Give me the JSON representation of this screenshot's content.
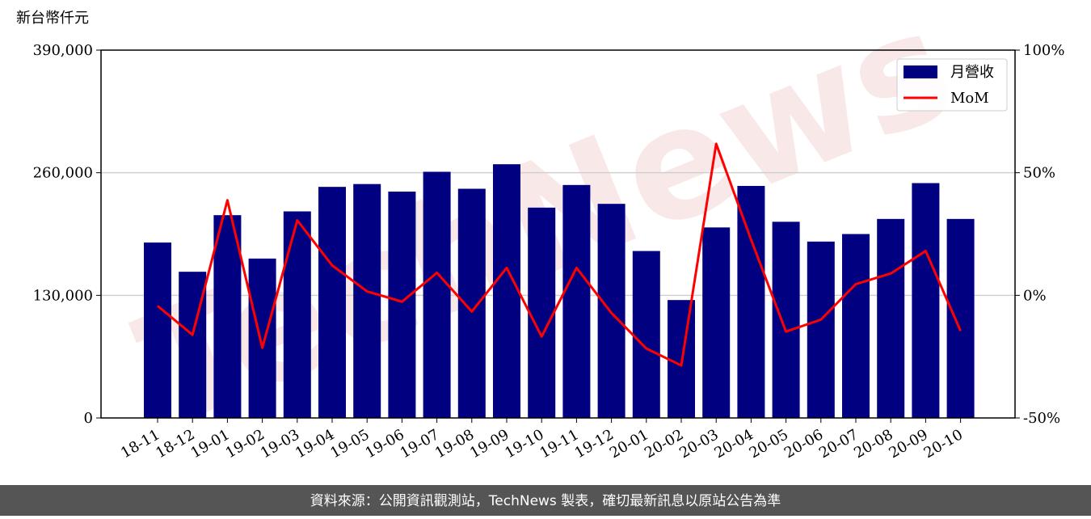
{
  "chart_data": {
    "type": "bar",
    "y_label": "新台幣仟元",
    "watermark": "TechNews",
    "categories": [
      "18-11",
      "18-12",
      "19-01",
      "19-02",
      "19-03",
      "19-04",
      "19-05",
      "19-06",
      "19-07",
      "19-08",
      "19-09",
      "19-10",
      "19-11",
      "19-12",
      "20-01",
      "20-02",
      "20-03",
      "20-04",
      "20-05",
      "20-06",
      "20-07",
      "20-08",
      "20-09",
      "20-10"
    ],
    "series": [
      {
        "name": "月營收",
        "type": "bar",
        "color": "#000080",
        "values": [
          186000,
          155000,
          215000,
          169000,
          219000,
          245000,
          248000,
          240000,
          261000,
          243000,
          269000,
          223000,
          247000,
          227000,
          177000,
          125000,
          202000,
          246000,
          208000,
          187000,
          195000,
          211000,
          249000,
          211000
        ]
      },
      {
        "name": "MoM",
        "type": "line",
        "axis": "y2",
        "color": "#ff0000",
        "values": [
          -4.3,
          -16.1,
          38.8,
          -21.4,
          30.6,
          12.2,
          1.6,
          -2.6,
          9.2,
          -6.6,
          11.2,
          -16.8,
          11.2,
          -7.2,
          -21.7,
          -28.6,
          61.8,
          22.7,
          -14.8,
          -9.9,
          4.6,
          8.9,
          18.1,
          -14.5
        ]
      }
    ],
    "ylim": [
      0,
      390000
    ],
    "yticks": [
      0,
      {
        "value": 130000,
        "label": "130,000"
      },
      {
        "value": 260000,
        "label": "260,000"
      },
      {
        "value": 390000,
        "label": "390,000"
      }
    ],
    "y2lim": [
      -50,
      100
    ],
    "y2ticks": [
      {
        "value": -50,
        "label": "-50%"
      },
      {
        "value": 0,
        "label": "0%"
      },
      {
        "value": 50,
        "label": "50%"
      },
      {
        "value": 100,
        "label": "100%"
      }
    ],
    "grid": true,
    "legend": "upper right"
  },
  "footer": "資料來源：公開資訊觀測站，TechNews 製表，確切最新訊息以原站公告為準"
}
